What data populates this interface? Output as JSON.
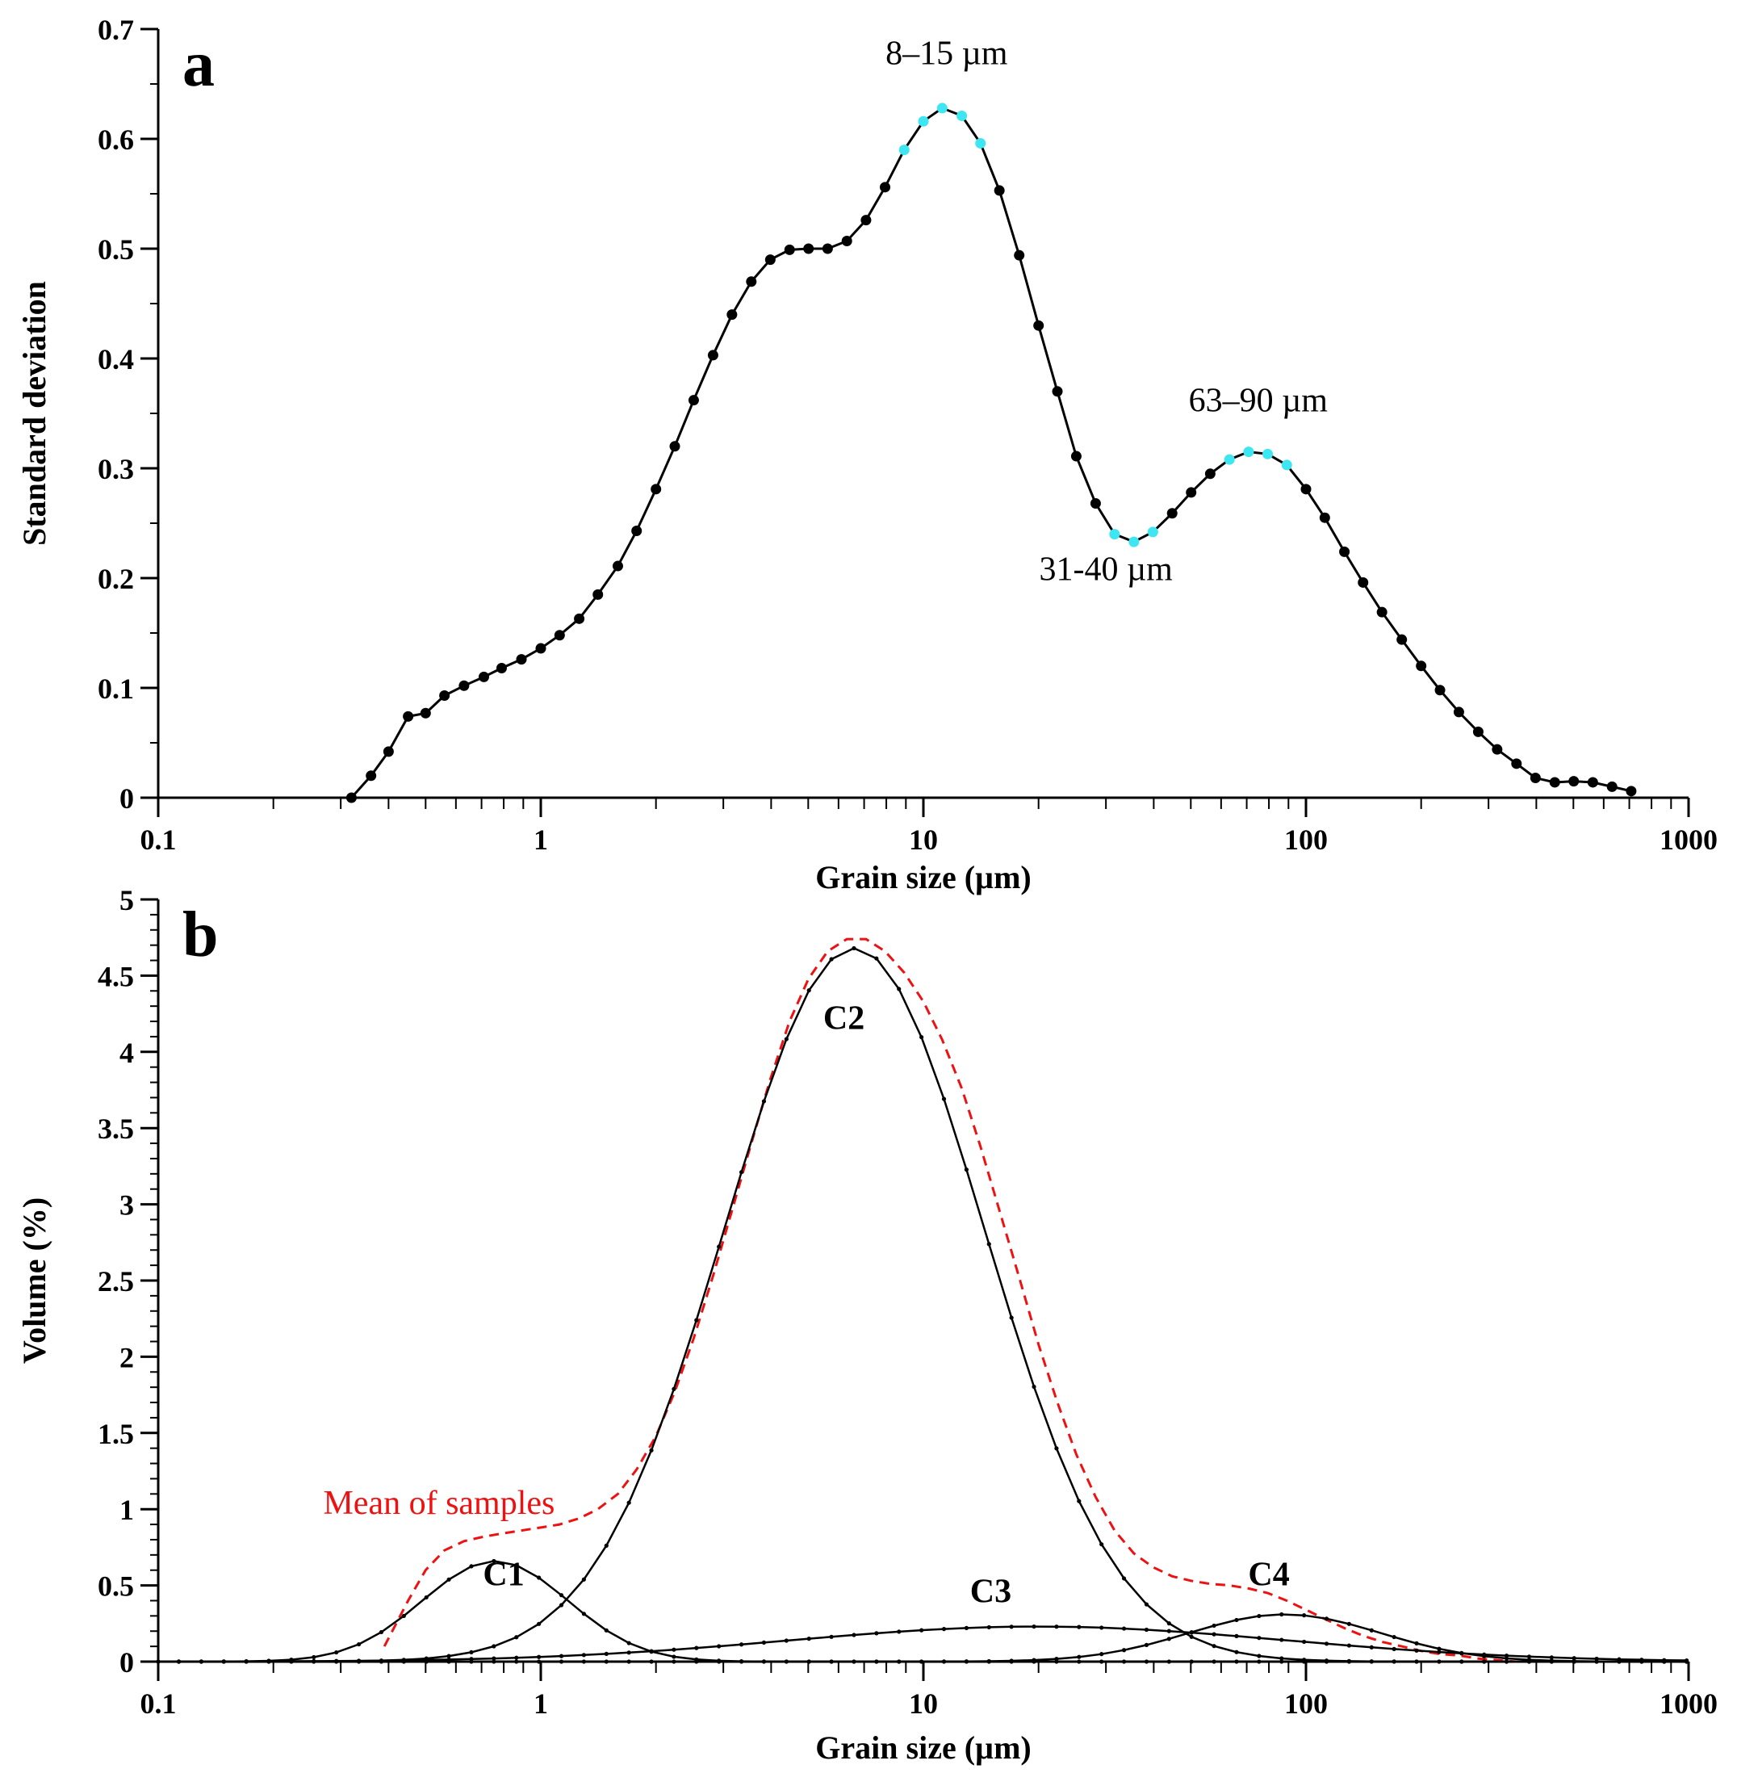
{
  "chart_data": [
    {
      "panel": "a",
      "type": "line",
      "xlabel": "Grain size (µm)",
      "ylabel": "Standard deviation",
      "xscale": "log",
      "xlim": [
        0.1,
        1000
      ],
      "ylim": [
        0,
        0.7
      ],
      "xticks": [
        {
          "value": 0.1,
          "label": "0.1"
        },
        {
          "value": 1,
          "label": "1"
        },
        {
          "value": 10,
          "label": "10"
        },
        {
          "value": 100,
          "label": "100"
        },
        {
          "value": 1000,
          "label": "1000"
        }
      ],
      "yticks": [
        {
          "value": 0,
          "label": "0"
        },
        {
          "value": 0.1,
          "label": "0.1"
        },
        {
          "value": 0.2,
          "label": "0.2"
        },
        {
          "value": 0.3,
          "label": "0.3"
        },
        {
          "value": 0.4,
          "label": "0.4"
        },
        {
          "value": 0.5,
          "label": "0.5"
        },
        {
          "value": 0.6,
          "label": "0.6"
        },
        {
          "value": 0.7,
          "label": "0.7"
        }
      ],
      "points": [
        [
          0.32,
          0.0
        ],
        [
          0.36,
          0.02
        ],
        [
          0.4,
          0.042
        ],
        [
          0.45,
          0.074
        ],
        [
          0.5,
          0.077
        ],
        [
          0.56,
          0.093
        ],
        [
          0.63,
          0.102
        ],
        [
          0.71,
          0.11
        ],
        [
          0.79,
          0.118
        ],
        [
          0.89,
          0.126
        ],
        [
          1.0,
          0.136
        ],
        [
          1.12,
          0.148
        ],
        [
          1.26,
          0.163
        ],
        [
          1.41,
          0.185
        ],
        [
          1.59,
          0.211
        ],
        [
          1.78,
          0.243
        ],
        [
          2.0,
          0.281
        ],
        [
          2.24,
          0.32
        ],
        [
          2.51,
          0.362
        ],
        [
          2.82,
          0.403
        ],
        [
          3.16,
          0.44
        ],
        [
          3.55,
          0.47
        ],
        [
          3.98,
          0.49
        ],
        [
          4.47,
          0.499
        ],
        [
          5.01,
          0.5
        ],
        [
          5.62,
          0.5
        ],
        [
          6.31,
          0.507
        ],
        [
          7.08,
          0.526
        ],
        [
          7.94,
          0.556
        ],
        [
          8.91,
          0.59
        ],
        [
          10.0,
          0.616
        ],
        [
          11.2,
          0.628
        ],
        [
          12.6,
          0.621
        ],
        [
          14.1,
          0.596
        ],
        [
          15.8,
          0.553
        ],
        [
          17.8,
          0.494
        ],
        [
          20.0,
          0.43
        ],
        [
          22.4,
          0.37
        ],
        [
          25.1,
          0.311
        ],
        [
          28.2,
          0.268
        ],
        [
          31.6,
          0.24
        ],
        [
          35.5,
          0.233
        ],
        [
          39.8,
          0.242
        ],
        [
          44.7,
          0.259
        ],
        [
          50.1,
          0.278
        ],
        [
          56.2,
          0.295
        ],
        [
          63.1,
          0.308
        ],
        [
          70.8,
          0.315
        ],
        [
          79.4,
          0.313
        ],
        [
          89.1,
          0.303
        ],
        [
          100,
          0.281
        ],
        [
          112,
          0.255
        ],
        [
          126,
          0.224
        ],
        [
          141,
          0.196
        ],
        [
          158,
          0.169
        ],
        [
          178,
          0.144
        ],
        [
          200,
          0.12
        ],
        [
          224,
          0.098
        ],
        [
          251,
          0.078
        ],
        [
          282,
          0.06
        ],
        [
          316,
          0.044
        ],
        [
          355,
          0.031
        ],
        [
          398,
          0.018
        ],
        [
          447,
          0.014
        ],
        [
          501,
          0.015
        ],
        [
          562,
          0.014
        ],
        [
          631,
          0.01
        ],
        [
          708,
          0.006
        ]
      ],
      "highlight_ranges": [
        [
          8.9,
          14.1
        ],
        [
          31.6,
          39.8
        ],
        [
          63.1,
          89.1
        ]
      ],
      "highlight_color": "#3ee6f2",
      "point_color": "#000000",
      "annotations": [
        {
          "text": "8–15 µm",
          "x": 11.5,
          "y": 0.668
        },
        {
          "text": "63–90 µm",
          "x": 75,
          "y": 0.352
        },
        {
          "text": "31-40 µm",
          "x": 30,
          "y": 0.198
        }
      ]
    },
    {
      "panel": "b",
      "type": "line",
      "xlabel": "Grain size (µm)",
      "ylabel": "Volume (%)",
      "xscale": "log",
      "xlim": [
        0.1,
        1000
      ],
      "ylim": [
        0,
        5
      ],
      "xticks": [
        {
          "value": 0.1,
          "label": "0.1"
        },
        {
          "value": 1,
          "label": "1"
        },
        {
          "value": 10,
          "label": "10"
        },
        {
          "value": 100,
          "label": "100"
        },
        {
          "value": 1000,
          "label": "1000"
        }
      ],
      "yticks": [
        {
          "value": 0,
          "label": "0"
        },
        {
          "value": 0.5,
          "label": "0.5"
        },
        {
          "value": 1,
          "label": "1"
        },
        {
          "value": 1.5,
          "label": "1.5"
        },
        {
          "value": 2,
          "label": "2"
        },
        {
          "value": 2.5,
          "label": "2.5"
        },
        {
          "value": 3,
          "label": "3"
        },
        {
          "value": 3.5,
          "label": "3.5"
        },
        {
          "value": 4,
          "label": "4"
        },
        {
          "value": 4.5,
          "label": "4.5"
        },
        {
          "value": 5,
          "label": "5"
        }
      ],
      "series": [
        {
          "name": "Mean of samples",
          "style": "dashed",
          "color": "#ee1111",
          "points": [
            [
              0.39,
              0.1
            ],
            [
              0.45,
              0.4
            ],
            [
              0.5,
              0.6
            ],
            [
              0.56,
              0.73
            ],
            [
              0.63,
              0.79
            ],
            [
              0.71,
              0.82
            ],
            [
              0.79,
              0.84
            ],
            [
              0.89,
              0.86
            ],
            [
              1.0,
              0.88
            ],
            [
              1.12,
              0.9
            ],
            [
              1.26,
              0.94
            ],
            [
              1.41,
              1.0
            ],
            [
              1.59,
              1.1
            ],
            [
              1.78,
              1.26
            ],
            [
              2.0,
              1.48
            ],
            [
              2.24,
              1.77
            ],
            [
              2.51,
              2.12
            ],
            [
              2.82,
              2.53
            ],
            [
              3.16,
              2.96
            ],
            [
              3.55,
              3.4
            ],
            [
              3.98,
              3.82
            ],
            [
              4.47,
              4.2
            ],
            [
              5.01,
              4.48
            ],
            [
              5.62,
              4.66
            ],
            [
              6.31,
              4.74
            ],
            [
              7.08,
              4.74
            ],
            [
              7.94,
              4.66
            ],
            [
              8.91,
              4.52
            ],
            [
              10.0,
              4.33
            ],
            [
              11.2,
              4.08
            ],
            [
              12.6,
              3.76
            ],
            [
              14.1,
              3.38
            ],
            [
              15.8,
              2.96
            ],
            [
              17.8,
              2.52
            ],
            [
              20.0,
              2.08
            ],
            [
              22.4,
              1.7
            ],
            [
              25.1,
              1.36
            ],
            [
              28.2,
              1.08
            ],
            [
              31.6,
              0.86
            ],
            [
              35.5,
              0.71
            ],
            [
              39.8,
              0.62
            ],
            [
              44.7,
              0.56
            ],
            [
              50.1,
              0.53
            ],
            [
              56.2,
              0.51
            ],
            [
              63.1,
              0.5
            ],
            [
              70.8,
              0.48
            ],
            [
              79.4,
              0.45
            ],
            [
              89.1,
              0.4
            ],
            [
              100,
              0.34
            ],
            [
              112,
              0.28
            ],
            [
              126,
              0.22
            ],
            [
              141,
              0.17
            ],
            [
              158,
              0.13
            ],
            [
              178,
              0.1
            ],
            [
              200,
              0.07
            ],
            [
              224,
              0.05
            ],
            [
              251,
              0.04
            ],
            [
              282,
              0.02
            ],
            [
              316,
              0.01
            ],
            [
              355,
              0.0
            ]
          ]
        },
        {
          "name": "C1",
          "type": "lognormal",
          "amplitude": 0.66,
          "mode": 0.76,
          "sigma_log10": 0.19,
          "label_x": 0.8,
          "label_y": 0.5
        },
        {
          "name": "C2",
          "type": "lognormal",
          "amplitude": 4.68,
          "mode": 6.6,
          "sigma_log10": 0.34,
          "label_x": 6.2,
          "label_y": 4.15
        },
        {
          "name": "C3",
          "type": "lognormal",
          "amplitude": 0.23,
          "mode": 20,
          "sigma_log10": 0.65,
          "label_x": 15,
          "label_y": 0.39
        },
        {
          "name": "C4",
          "type": "lognormal",
          "amplitude": 0.31,
          "mode": 88,
          "sigma_log10": 0.25,
          "label_x": 80,
          "label_y": 0.5
        }
      ],
      "annotation": {
        "text": "Mean of samples",
        "x": 0.27,
        "y": 0.97,
        "color": "#ee1111"
      }
    }
  ]
}
